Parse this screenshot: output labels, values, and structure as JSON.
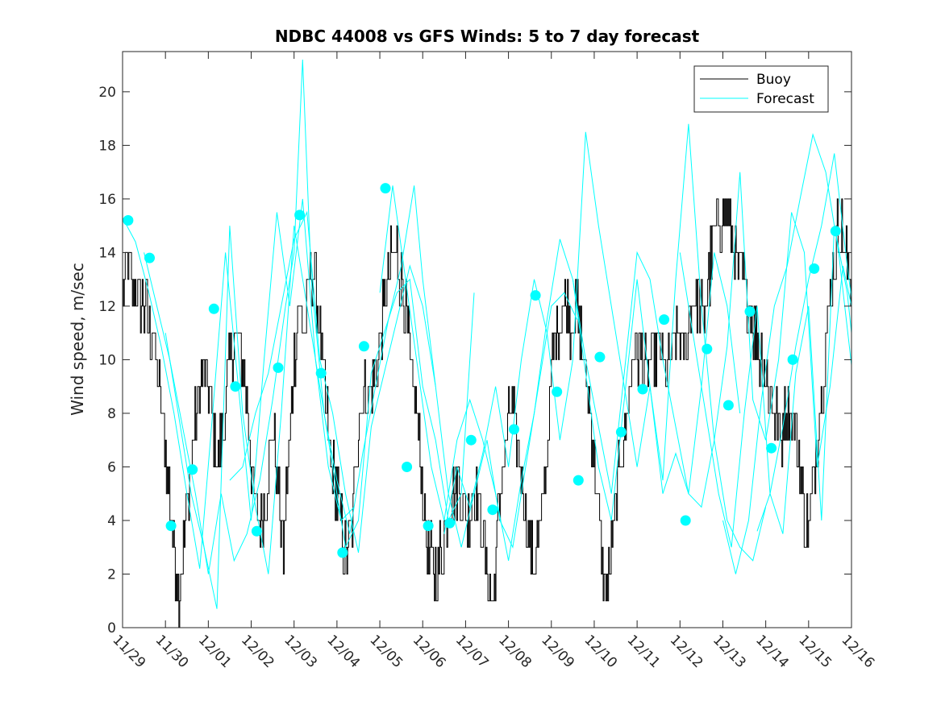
{
  "chart_data": {
    "type": "line",
    "title": "NDBC 44008 vs GFS Winds: 5 to 7 day forecast",
    "xlabel": "",
    "ylabel": "Wind speed, m/sec",
    "xlim": [
      0,
      17
    ],
    "ylim": [
      0,
      21.5
    ],
    "x_tick_labels": [
      "11/29",
      "11/30",
      "12/01",
      "12/02",
      "12/03",
      "12/04",
      "12/05",
      "12/06",
      "12/07",
      "12/08",
      "12/09",
      "12/10",
      "12/11",
      "12/12",
      "12/13",
      "12/14",
      "12/15",
      "12/16"
    ],
    "y_ticks": [
      0,
      2,
      4,
      6,
      8,
      10,
      12,
      14,
      16,
      18,
      20
    ],
    "legend": {
      "position": "top-right",
      "entries": [
        {
          "label": "Buoy",
          "color": "#000000"
        },
        {
          "label": "Forecast",
          "color": "#00FFFF"
        }
      ]
    },
    "colors": {
      "buoy": "#000000",
      "forecast": "#00FFFF",
      "markers": "#00FFFF"
    },
    "buoy_anchors": [
      [
        0.0,
        12.5
      ],
      [
        0.1,
        13.5
      ],
      [
        0.25,
        12.5
      ],
      [
        0.5,
        12
      ],
      [
        0.7,
        11
      ],
      [
        0.8,
        9.5
      ],
      [
        0.95,
        7.5
      ],
      [
        1.1,
        5
      ],
      [
        1.2,
        3
      ],
      [
        1.3,
        1.5
      ],
      [
        1.45,
        3.5
      ],
      [
        1.55,
        5.5
      ],
      [
        1.7,
        8
      ],
      [
        1.85,
        9.5
      ],
      [
        2.05,
        8.5
      ],
      [
        2.2,
        6
      ],
      [
        2.35,
        7.5
      ],
      [
        2.5,
        10
      ],
      [
        2.65,
        11
      ],
      [
        2.8,
        10
      ],
      [
        2.95,
        7.5
      ],
      [
        3.05,
        5
      ],
      [
        3.2,
        3.5
      ],
      [
        3.35,
        5
      ],
      [
        3.5,
        7.5
      ],
      [
        3.6,
        5.5
      ],
      [
        3.75,
        3
      ],
      [
        3.85,
        6
      ],
      [
        4.0,
        10
      ],
      [
        4.1,
        12
      ],
      [
        4.25,
        11
      ],
      [
        4.4,
        13.5
      ],
      [
        4.55,
        12
      ],
      [
        4.7,
        9
      ],
      [
        4.85,
        6
      ],
      [
        5.0,
        5
      ],
      [
        5.2,
        2.5
      ],
      [
        5.35,
        4
      ],
      [
        5.5,
        8
      ],
      [
        5.65,
        9
      ],
      [
        5.8,
        8.5
      ],
      [
        5.95,
        10
      ],
      [
        6.1,
        12
      ],
      [
        6.25,
        13.5
      ],
      [
        6.4,
        14
      ],
      [
        6.55,
        12.5
      ],
      [
        6.7,
        10
      ],
      [
        6.85,
        8
      ],
      [
        7.0,
        5
      ],
      [
        7.15,
        2.5
      ],
      [
        7.3,
        2
      ],
      [
        7.45,
        3
      ],
      [
        7.6,
        4.5
      ],
      [
        7.75,
        5.5
      ],
      [
        7.9,
        5
      ],
      [
        8.05,
        4
      ],
      [
        8.2,
        5.5
      ],
      [
        8.35,
        4
      ],
      [
        8.5,
        2
      ],
      [
        8.65,
        1
      ],
      [
        8.75,
        4
      ],
      [
        8.9,
        6.5
      ],
      [
        9.05,
        8
      ],
      [
        9.2,
        7
      ],
      [
        9.35,
        5
      ],
      [
        9.5,
        3
      ],
      [
        9.6,
        2.5
      ],
      [
        9.75,
        4
      ],
      [
        9.9,
        6.5
      ],
      [
        10.0,
        9.5
      ],
      [
        10.15,
        11.5
      ],
      [
        10.3,
        12
      ],
      [
        10.45,
        11.5
      ],
      [
        10.6,
        12
      ],
      [
        10.75,
        10
      ],
      [
        10.9,
        8
      ],
      [
        11.0,
        6.5
      ],
      [
        11.1,
        4
      ],
      [
        11.2,
        2
      ],
      [
        11.3,
        1.5
      ],
      [
        11.45,
        3.5
      ],
      [
        11.6,
        6
      ],
      [
        11.75,
        8
      ],
      [
        11.9,
        10
      ],
      [
        12.05,
        10.5
      ],
      [
        12.2,
        9.5
      ],
      [
        12.35,
        10
      ],
      [
        12.5,
        10.5
      ],
      [
        12.65,
        9.5
      ],
      [
        12.8,
        10
      ],
      [
        12.95,
        11
      ],
      [
        13.1,
        10
      ],
      [
        13.25,
        12
      ],
      [
        13.4,
        12.5
      ],
      [
        13.55,
        11.5
      ],
      [
        13.7,
        13.5
      ],
      [
        13.85,
        15
      ],
      [
        14.0,
        15.5
      ],
      [
        14.15,
        15
      ],
      [
        14.3,
        14
      ],
      [
        14.45,
        13
      ],
      [
        14.6,
        12
      ],
      [
        14.75,
        11
      ],
      [
        14.9,
        10
      ],
      [
        15.05,
        9
      ],
      [
        15.2,
        8
      ],
      [
        15.35,
        7
      ],
      [
        15.5,
        8.5
      ],
      [
        15.65,
        7.5
      ],
      [
        15.8,
        6
      ],
      [
        15.9,
        4
      ],
      [
        16.0,
        3.5
      ],
      [
        16.1,
        5.5
      ],
      [
        16.25,
        8
      ],
      [
        16.4,
        10.5
      ],
      [
        16.55,
        13
      ],
      [
        16.7,
        15
      ],
      [
        16.8,
        14.5
      ],
      [
        16.95,
        13
      ]
    ],
    "forecast_series": [
      [
        [
          0,
          15.3
        ],
        [
          0.3,
          14.4
        ],
        [
          0.6,
          12.6
        ],
        [
          0.9,
          10.5
        ],
        [
          1.2,
          8.0
        ],
        [
          1.5,
          5.0
        ],
        [
          1.8,
          2.2
        ],
        [
          2.1,
          8.0
        ],
        [
          2.4,
          14.0
        ],
        [
          2.7,
          9.0
        ],
        [
          3.0,
          4.0
        ],
        [
          3.3,
          10.0
        ],
        [
          3.6,
          15.5
        ],
        [
          3.9,
          12.0
        ],
        [
          4.2,
          16.0
        ],
        [
          4.5,
          10.0
        ],
        [
          4.8,
          6.0
        ],
        [
          5.1,
          4.0
        ],
        [
          5.4,
          4.5
        ]
      ],
      [
        [
          0.5,
          14.0
        ],
        [
          0.8,
          12.0
        ],
        [
          1.1,
          10.0
        ],
        [
          1.4,
          7.5
        ],
        [
          1.7,
          5.0
        ],
        [
          2.0,
          2.0
        ],
        [
          2.3,
          5.0
        ],
        [
          2.6,
          2.5
        ],
        [
          2.9,
          3.5
        ],
        [
          3.2,
          5.5
        ],
        [
          3.5,
          8.5
        ],
        [
          3.8,
          12.0
        ],
        [
          4.0,
          14.0
        ],
        [
          4.2,
          21.2
        ],
        [
          4.4,
          13.0
        ],
        [
          4.7,
          8.0
        ],
        [
          5.0,
          5.5
        ],
        [
          5.3,
          3.5
        ],
        [
          5.6,
          6.5
        ],
        [
          5.9,
          9.0
        ],
        [
          6.2,
          11.5
        ],
        [
          6.5,
          13.5
        ],
        [
          6.8,
          16.5
        ],
        [
          7.0,
          13.0
        ],
        [
          7.3,
          9.0
        ]
      ],
      [
        [
          1.0,
          11.0
        ],
        [
          1.3,
          8.0
        ],
        [
          1.6,
          5.0
        ],
        [
          1.9,
          3.0
        ],
        [
          2.2,
          0.7
        ],
        [
          2.5,
          15.0
        ],
        [
          2.8,
          8.0
        ],
        [
          3.1,
          4.5
        ],
        [
          3.4,
          2.0
        ],
        [
          3.7,
          8.0
        ],
        [
          4.0,
          15.0
        ],
        [
          4.3,
          12.0
        ],
        [
          4.6,
          9.0
        ],
        [
          4.9,
          6.0
        ],
        [
          5.2,
          3.0
        ],
        [
          5.5,
          4.0
        ],
        [
          5.8,
          9.5
        ],
        [
          6.1,
          11.0
        ],
        [
          6.4,
          12.5
        ],
        [
          6.7,
          13.0
        ],
        [
          7.0,
          9.0
        ],
        [
          7.3,
          7.0
        ],
        [
          7.6,
          4.0
        ],
        [
          7.9,
          5.0
        ],
        [
          8.2,
          12.5
        ]
      ],
      [
        [
          2.5,
          5.5
        ],
        [
          2.8,
          6.0
        ],
        [
          3.1,
          8.0
        ],
        [
          3.4,
          9.5
        ],
        [
          3.7,
          12.0
        ],
        [
          4.0,
          14.5
        ],
        [
          4.3,
          15.5
        ],
        [
          4.6,
          10.0
        ],
        [
          4.9,
          8.0
        ],
        [
          5.2,
          5.0
        ],
        [
          5.5,
          2.8
        ],
        [
          5.8,
          7.5
        ],
        [
          6.1,
          9.5
        ],
        [
          6.4,
          11.5
        ],
        [
          6.7,
          13.5
        ],
        [
          7.0,
          12.0
        ],
        [
          7.3,
          9.0
        ],
        [
          7.6,
          5.0
        ],
        [
          7.9,
          3.0
        ],
        [
          8.2,
          5.0
        ],
        [
          8.5,
          7.0
        ],
        [
          8.8,
          4.0
        ],
        [
          9.1,
          3.0
        ],
        [
          9.4,
          6.0
        ],
        [
          9.7,
          9.0
        ],
        [
          10.0,
          12.0
        ],
        [
          10.3,
          12.5
        ],
        [
          10.6,
          11.5
        ]
      ],
      [
        [
          6.0,
          12.5
        ],
        [
          6.3,
          16.5
        ],
        [
          6.6,
          13.0
        ],
        [
          6.9,
          9.5
        ],
        [
          7.2,
          6.0
        ],
        [
          7.5,
          4.0
        ],
        [
          7.8,
          7.0
        ],
        [
          8.1,
          8.5
        ],
        [
          8.4,
          7.0
        ],
        [
          8.7,
          5.0
        ],
        [
          9.0,
          2.5
        ],
        [
          9.3,
          5.5
        ],
        [
          9.6,
          8.0
        ],
        [
          9.9,
          11.5
        ],
        [
          10.2,
          14.5
        ],
        [
          10.5,
          13.0
        ],
        [
          10.8,
          10.0
        ],
        [
          11.1,
          7.5
        ],
        [
          11.4,
          5.0
        ],
        [
          11.7,
          9.5
        ],
        [
          12.0,
          14.0
        ],
        [
          12.3,
          13.0
        ],
        [
          12.6,
          10.0
        ],
        [
          12.9,
          7.5
        ],
        [
          13.2,
          5.0
        ],
        [
          13.5,
          9.0
        ],
        [
          13.8,
          14.0
        ],
        [
          14.1,
          12.0
        ],
        [
          14.4,
          8.0
        ]
      ],
      [
        [
          7.5,
          3.5
        ],
        [
          7.8,
          6.0
        ],
        [
          8.1,
          4.5
        ],
        [
          8.4,
          6.5
        ],
        [
          8.7,
          9.0
        ],
        [
          9.0,
          6.0
        ],
        [
          9.3,
          10.0
        ],
        [
          9.6,
          13.0
        ],
        [
          9.9,
          11.0
        ],
        [
          10.2,
          7.0
        ],
        [
          10.5,
          10.0
        ],
        [
          10.8,
          18.5
        ],
        [
          11.1,
          15.0
        ],
        [
          11.4,
          12.0
        ],
        [
          11.7,
          9.0
        ],
        [
          12.0,
          6.0
        ],
        [
          12.3,
          9.0
        ],
        [
          12.6,
          5.5
        ],
        [
          12.9,
          13.0
        ],
        [
          13.2,
          18.8
        ],
        [
          13.5,
          12.0
        ],
        [
          13.8,
          7.0
        ],
        [
          14.1,
          4.0
        ],
        [
          14.4,
          3.0
        ],
        [
          14.7,
          2.5
        ],
        [
          15.0,
          4.5
        ]
      ],
      [
        [
          10.5,
          13.0
        ],
        [
          10.8,
          9.5
        ],
        [
          11.1,
          6.0
        ],
        [
          11.4,
          4.0
        ],
        [
          11.7,
          8.5
        ],
        [
          12.0,
          13.0
        ],
        [
          12.3,
          9.0
        ],
        [
          12.6,
          5.0
        ],
        [
          12.9,
          6.5
        ],
        [
          13.2,
          5.0
        ],
        [
          13.5,
          4.5
        ],
        [
          13.8,
          7.0
        ],
        [
          14.1,
          10.5
        ],
        [
          14.4,
          17.0
        ],
        [
          14.7,
          8.5
        ],
        [
          15.0,
          7.0
        ],
        [
          15.3,
          10.0
        ],
        [
          15.6,
          15.5
        ],
        [
          15.9,
          14.0
        ],
        [
          16.2,
          6.0
        ],
        [
          16.5,
          9.0
        ],
        [
          16.8,
          13.5
        ],
        [
          17.0,
          12.0
        ]
      ],
      [
        [
          13.0,
          14.0
        ],
        [
          13.3,
          11.0
        ],
        [
          13.6,
          8.0
        ],
        [
          13.9,
          5.0
        ],
        [
          14.2,
          3.0
        ],
        [
          14.5,
          8.0
        ],
        [
          14.8,
          12.0
        ],
        [
          15.1,
          5.0
        ],
        [
          15.4,
          3.5
        ],
        [
          15.7,
          9.5
        ],
        [
          16.0,
          12.0
        ],
        [
          16.3,
          4.0
        ],
        [
          16.6,
          15.0
        ],
        [
          16.9,
          12.5
        ],
        [
          17.0,
          11.0
        ]
      ],
      [
        [
          14.0,
          4.0
        ],
        [
          14.3,
          2.0
        ],
        [
          14.6,
          4.0
        ],
        [
          14.9,
          8.5
        ],
        [
          15.2,
          12.0
        ],
        [
          15.5,
          13.5
        ],
        [
          15.8,
          16.0
        ],
        [
          16.1,
          18.4
        ],
        [
          16.4,
          17.0
        ],
        [
          16.7,
          14.0
        ],
        [
          17.0,
          9.8
        ]
      ],
      [
        [
          14.8,
          3.6
        ],
        [
          15.1,
          5.0
        ],
        [
          15.4,
          7.5
        ],
        [
          15.7,
          10.5
        ],
        [
          16.0,
          13.0
        ],
        [
          16.3,
          15.0
        ],
        [
          16.6,
          17.7
        ],
        [
          16.9,
          13.5
        ],
        [
          17.0,
          12.3
        ]
      ]
    ],
    "forecast_markers": [
      [
        0.13,
        15.2
      ],
      [
        0.63,
        13.8
      ],
      [
        1.13,
        3.8
      ],
      [
        1.63,
        5.9
      ],
      [
        2.13,
        11.9
      ],
      [
        2.63,
        9.0
      ],
      [
        3.13,
        3.6
      ],
      [
        3.63,
        9.7
      ],
      [
        4.13,
        15.4
      ],
      [
        4.63,
        9.5
      ],
      [
        5.13,
        2.8
      ],
      [
        5.63,
        10.5
      ],
      [
        6.13,
        16.4
      ],
      [
        6.63,
        6.0
      ],
      [
        7.13,
        3.8
      ],
      [
        7.63,
        3.9
      ],
      [
        8.13,
        7.0
      ],
      [
        8.63,
        4.4
      ],
      [
        9.13,
        7.4
      ],
      [
        9.63,
        12.4
      ],
      [
        10.13,
        8.8
      ],
      [
        10.63,
        5.5
      ],
      [
        11.13,
        10.1
      ],
      [
        11.63,
        7.3
      ],
      [
        12.13,
        8.9
      ],
      [
        12.63,
        11.5
      ],
      [
        13.13,
        4.0
      ],
      [
        13.63,
        10.4
      ],
      [
        14.13,
        8.3
      ],
      [
        14.63,
        11.8
      ],
      [
        15.13,
        6.7
      ],
      [
        15.63,
        10.0
      ],
      [
        16.13,
        13.4
      ],
      [
        16.63,
        14.8
      ]
    ]
  }
}
